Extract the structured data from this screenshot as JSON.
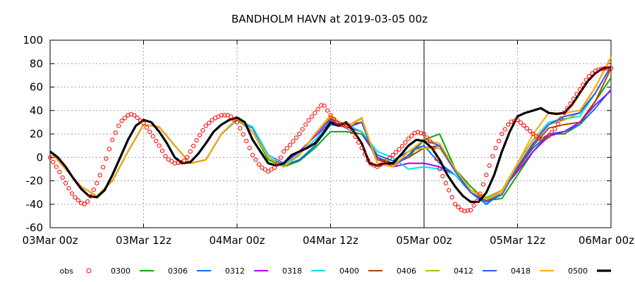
{
  "chart_data": {
    "type": "line",
    "title": "BANDHOLM HAVN at 2019-03-05 00z",
    "xlabel": "",
    "ylabel": "",
    "xlim": [
      0,
      72
    ],
    "ylim": [
      -60,
      100
    ],
    "x_unit": "hours since 03Mar 00z",
    "x_ticks": [
      {
        "x": 0,
        "label": "03Mar 00z"
      },
      {
        "x": 12,
        "label": "03Mar 12z"
      },
      {
        "x": 24,
        "label": "04Mar 00z"
      },
      {
        "x": 36,
        "label": "04Mar 12z"
      },
      {
        "x": 48,
        "label": "05Mar 00z"
      },
      {
        "x": 60,
        "label": "05Mar 12z"
      },
      {
        "x": 72,
        "label": "06Mar 00z"
      }
    ],
    "y_ticks": [
      -60,
      -40,
      -20,
      0,
      20,
      40,
      60,
      80,
      100
    ],
    "y_tick_labels": [
      "-60",
      "-40",
      "-20",
      "0",
      "20",
      "40",
      "60",
      "80",
      "100"
    ],
    "grid": true,
    "analysis_time_x": 48,
    "legend_position": "bottom",
    "obs": {
      "name": "obs",
      "color": "#ff0000",
      "x": [
        0,
        1,
        2,
        3,
        4,
        4.5,
        5,
        6,
        7,
        8,
        9,
        10,
        10.5,
        11,
        12,
        13,
        14,
        15,
        16,
        17,
        17.5,
        18,
        19,
        20,
        21,
        22,
        23,
        24,
        25,
        26,
        27,
        28,
        29,
        30,
        31,
        32,
        33,
        34,
        35,
        36,
        37,
        38,
        39,
        40,
        41,
        42,
        43,
        44,
        45,
        46,
        47,
        48,
        49,
        50,
        51,
        52,
        53,
        54,
        55,
        56,
        57,
        58,
        59,
        60,
        61,
        62,
        63,
        64,
        65,
        66,
        67,
        68,
        69,
        70,
        71,
        72
      ],
      "y": [
        0,
        -10,
        -22,
        -33,
        -39,
        -40,
        -36,
        -22,
        -5,
        15,
        30,
        36,
        37,
        35,
        29,
        20,
        10,
        -1,
        -5,
        -4,
        -1,
        5,
        17,
        27,
        33,
        36,
        36,
        30,
        17,
        2,
        -8,
        -12,
        -8,
        5,
        12,
        20,
        30,
        38,
        46,
        36,
        28,
        28,
        20,
        8,
        -5,
        -8,
        -4,
        2,
        8,
        16,
        22,
        20,
        12,
        -10,
        -25,
        -40,
        -46,
        -45,
        -35,
        -15,
        5,
        20,
        30,
        32,
        26,
        20,
        15,
        18,
        26,
        38,
        48,
        58,
        68,
        74,
        76,
        76
      ]
    },
    "series": [
      {
        "name": "0300",
        "color": "#00aa00",
        "width": 2,
        "x": [
          0,
          2,
          4,
          6,
          8,
          10,
          12,
          14,
          16,
          18,
          20,
          22,
          24,
          26,
          28,
          30,
          32,
          34,
          36,
          38,
          40,
          42,
          44,
          46,
          48,
          50,
          52,
          54,
          56,
          58,
          60,
          62,
          64,
          66,
          68,
          70,
          72
        ],
        "y": [
          5,
          -10,
          -25,
          -33,
          -20,
          5,
          28,
          26,
          10,
          -5,
          -2,
          20,
          32,
          22,
          -2,
          -8,
          -3,
          8,
          22,
          22,
          20,
          0,
          -5,
          0,
          15,
          20,
          -10,
          -25,
          -37,
          -35,
          -15,
          5,
          20,
          20,
          28,
          48,
          68
        ]
      },
      {
        "name": "0306",
        "color": "#0070ff",
        "width": 2,
        "x": [
          0,
          2,
          4,
          6,
          8,
          10,
          12,
          14,
          16,
          18,
          20,
          22,
          24,
          26,
          28,
          30,
          32,
          34,
          36,
          38,
          40,
          42,
          44,
          46,
          48,
          50,
          52,
          54,
          56,
          58,
          60,
          62,
          64,
          66,
          68,
          70,
          72
        ],
        "y": [
          5,
          -10,
          -25,
          -33,
          -20,
          5,
          28,
          26,
          10,
          -5,
          -2,
          20,
          32,
          25,
          0,
          -7,
          -2,
          10,
          28,
          26,
          22,
          2,
          -3,
          5,
          10,
          -5,
          -15,
          -30,
          -40,
          -30,
          -10,
          8,
          20,
          22,
          28,
          42,
          58
        ]
      },
      {
        "name": "0312",
        "color": "#aa00ff",
        "width": 2,
        "x": [
          0,
          2,
          4,
          6,
          8,
          10,
          12,
          14,
          16,
          18,
          20,
          22,
          24,
          26,
          28,
          30,
          32,
          34,
          36,
          38,
          40,
          42,
          44,
          46,
          48,
          50,
          52,
          54,
          56,
          58,
          60,
          62,
          64,
          66,
          68,
          70,
          72
        ],
        "y": [
          5,
          -10,
          -25,
          -33,
          -20,
          5,
          28,
          26,
          10,
          -5,
          -2,
          20,
          32,
          26,
          2,
          -5,
          5,
          18,
          30,
          26,
          22,
          0,
          -8,
          -5,
          -5,
          -8,
          -15,
          -28,
          -35,
          -28,
          -12,
          5,
          18,
          22,
          30,
          45,
          57
        ]
      },
      {
        "name": "0318",
        "color": "#00e5e5",
        "width": 2,
        "x": [
          0,
          2,
          4,
          6,
          8,
          10,
          12,
          14,
          16,
          18,
          20,
          22,
          24,
          26,
          28,
          30,
          32,
          34,
          36,
          38,
          40,
          42,
          44,
          46,
          48,
          50,
          52,
          54,
          56,
          58,
          60,
          62,
          64,
          66,
          68,
          70,
          72
        ],
        "y": [
          5,
          -10,
          -25,
          -33,
          -20,
          5,
          28,
          26,
          10,
          -5,
          -2,
          20,
          32,
          26,
          2,
          -6,
          3,
          15,
          30,
          28,
          22,
          5,
          0,
          -10,
          -8,
          -10,
          -15,
          -28,
          -35,
          -30,
          -5,
          15,
          30,
          33,
          35,
          55,
          78
        ]
      },
      {
        "name": "0400",
        "color": "#aa4400",
        "width": 2,
        "x": [
          0,
          2,
          4,
          6,
          8,
          10,
          12,
          14,
          16,
          18,
          20,
          22,
          24,
          26,
          28,
          30,
          32,
          34,
          36,
          38,
          40,
          42,
          44,
          46,
          48,
          50,
          52,
          54,
          56,
          58,
          60,
          62,
          64,
          66,
          68,
          70,
          72
        ],
        "y": [
          5,
          -10,
          -25,
          -33,
          -20,
          5,
          28,
          26,
          10,
          -5,
          -2,
          20,
          33,
          22,
          0,
          -8,
          2,
          20,
          33,
          28,
          30,
          -2,
          -6,
          0,
          8,
          10,
          -12,
          -30,
          -37,
          -30,
          -10,
          10,
          25,
          28,
          30,
          48,
          76
        ]
      },
      {
        "name": "0406",
        "color": "#c8b400",
        "width": 2,
        "x": [
          0,
          2,
          4,
          6,
          8,
          10,
          12,
          14,
          16,
          18,
          20,
          22,
          24,
          26,
          28,
          30,
          32,
          34,
          36,
          38,
          40,
          42,
          44,
          46,
          48,
          50,
          52,
          54,
          56,
          58,
          60,
          62,
          64,
          66,
          68,
          70,
          72
        ],
        "y": [
          5,
          -10,
          -25,
          -33,
          -20,
          5,
          28,
          26,
          10,
          -5,
          -2,
          20,
          33,
          22,
          0,
          -8,
          2,
          20,
          36,
          26,
          34,
          -5,
          -8,
          5,
          8,
          8,
          -12,
          -28,
          -34,
          -28,
          -5,
          15,
          28,
          32,
          38,
          60,
          85
        ]
      },
      {
        "name": "0412",
        "color": "#3355ff",
        "width": 2,
        "x": [
          0,
          2,
          4,
          6,
          8,
          10,
          12,
          14,
          16,
          18,
          20,
          22,
          24,
          26,
          28,
          30,
          32,
          34,
          36,
          38,
          40,
          42,
          44,
          46,
          48,
          50,
          52,
          54,
          56,
          58,
          60,
          62,
          64,
          66,
          68,
          70,
          72
        ],
        "y": [
          5,
          -10,
          -25,
          -33,
          -20,
          5,
          28,
          26,
          10,
          -5,
          -2,
          20,
          33,
          22,
          0,
          -8,
          2,
          20,
          32,
          25,
          30,
          -5,
          -8,
          2,
          15,
          10,
          -12,
          -30,
          -38,
          -32,
          -8,
          12,
          28,
          35,
          38,
          55,
          78
        ]
      },
      {
        "name": "0418",
        "color": "#ffaa00",
        "width": 2,
        "x": [
          0,
          2,
          4,
          6,
          8,
          10,
          12,
          14,
          16,
          18,
          20,
          22,
          24,
          26,
          28,
          30,
          32,
          34,
          36,
          38,
          40,
          42,
          44,
          46,
          48,
          50,
          52,
          54,
          56,
          58,
          60,
          62,
          64,
          66,
          68,
          70,
          72
        ],
        "y": [
          5,
          -10,
          -25,
          -33,
          -20,
          5,
          28,
          26,
          10,
          -5,
          -2,
          20,
          33,
          22,
          0,
          -8,
          2,
          20,
          35,
          26,
          33,
          -5,
          -8,
          5,
          15,
          12,
          -10,
          -28,
          -36,
          -30,
          -5,
          20,
          38,
          38,
          40,
          60,
          86
        ]
      },
      {
        "name": "0500",
        "color": "#000000",
        "width": 3.2,
        "x": [
          0,
          1,
          2,
          3,
          4,
          5,
          6,
          7,
          8,
          9,
          10,
          11,
          12,
          13,
          14,
          15,
          16,
          17,
          18,
          19,
          20,
          21,
          22,
          23,
          24,
          25,
          26,
          27,
          28,
          29,
          30,
          31,
          32,
          33,
          34,
          35,
          36,
          37,
          38,
          39,
          40,
          41,
          42,
          43,
          44,
          45,
          46,
          47,
          48,
          49,
          50,
          51,
          52,
          53,
          54,
          55,
          56,
          57,
          58,
          59,
          60,
          61,
          62,
          63,
          64,
          65,
          66,
          67,
          68,
          69,
          70,
          71,
          72
        ],
        "y": [
          5,
          0,
          -8,
          -18,
          -27,
          -33,
          -34,
          -28,
          -15,
          0,
          15,
          27,
          32,
          30,
          22,
          12,
          0,
          -5,
          -4,
          3,
          12,
          22,
          28,
          32,
          34,
          30,
          15,
          5,
          -5,
          -7,
          -5,
          2,
          5,
          8,
          12,
          20,
          30,
          27,
          30,
          22,
          12,
          -5,
          -7,
          -5,
          -5,
          2,
          10,
          15,
          14,
          8,
          -2,
          -15,
          -25,
          -33,
          -38,
          -38,
          -30,
          -15,
          5,
          22,
          35,
          38,
          40,
          42,
          38,
          37,
          38,
          45,
          55,
          65,
          72,
          76,
          77
        ]
      }
    ],
    "legend": [
      "obs",
      "0300",
      "0306",
      "0312",
      "0318",
      "0400",
      "0406",
      "0412",
      "0418",
      "0500"
    ]
  }
}
